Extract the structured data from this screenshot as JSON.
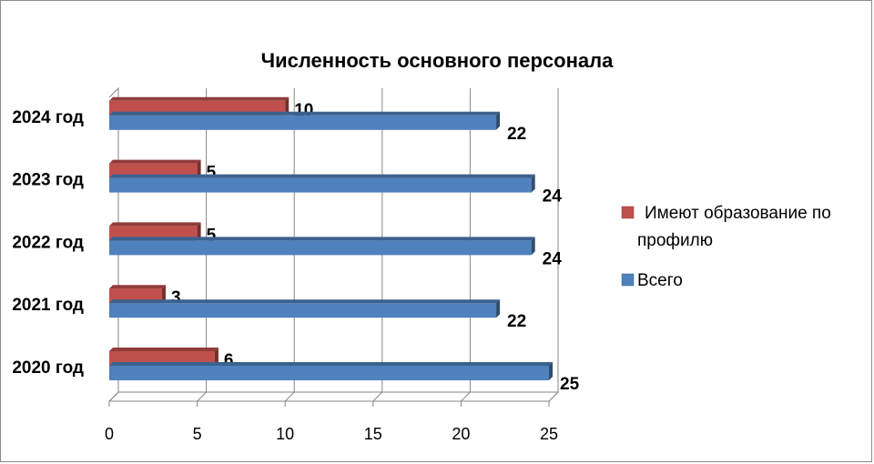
{
  "chart_data": {
    "type": "bar",
    "orientation": "horizontal",
    "title": "Численность основного персонала",
    "categories": [
      "2020 год",
      "2021 год",
      "2022 год",
      "2023 год",
      "2024 год"
    ],
    "series": [
      {
        "name": "Всего",
        "color": "#4F81BD",
        "values": [
          25,
          22,
          24,
          24,
          22
        ]
      },
      {
        "name": "Имеют образование по профилю",
        "color": "#C0504D",
        "values": [
          6,
          3,
          5,
          5,
          10
        ]
      }
    ],
    "xlim": [
      0,
      25
    ],
    "xticks": [
      0,
      5,
      10,
      15,
      20,
      25
    ],
    "grid": true,
    "legend_position": "right"
  },
  "legend": {
    "item1_line1": "Имеют образование по",
    "item1_line2": "профилю",
    "item2": "Всего"
  }
}
